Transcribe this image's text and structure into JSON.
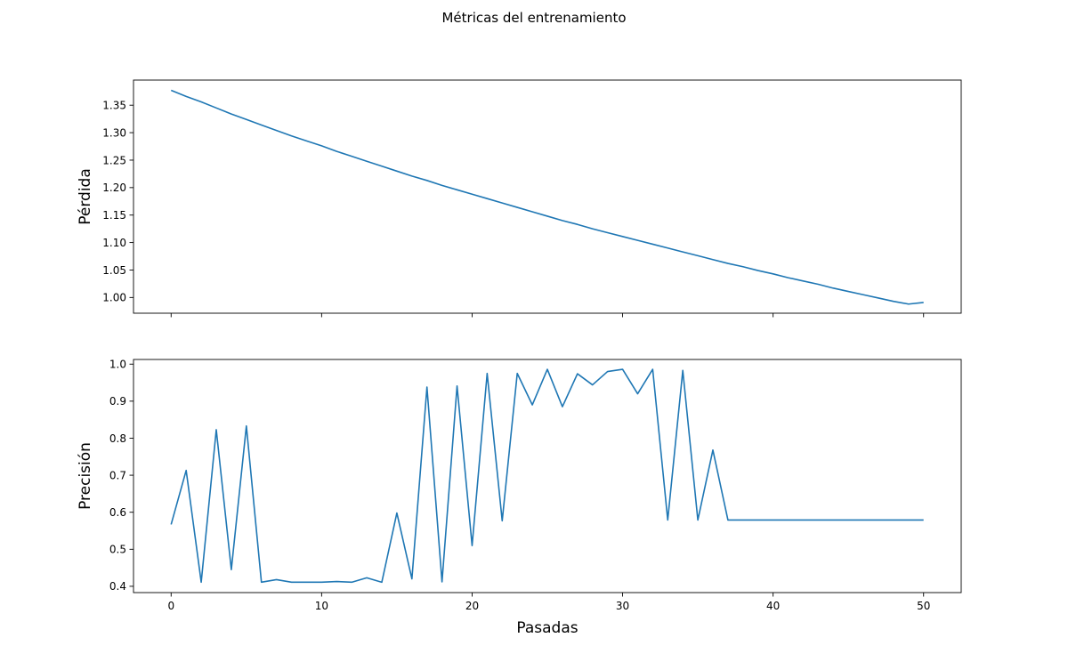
{
  "figure_title": "Métricas del entrenamiento",
  "chart_data": [
    {
      "type": "line",
      "title": "",
      "xlabel": "",
      "ylabel": "Pérdida",
      "xlim": [
        -2.5,
        52.5
      ],
      "ylim": [
        0.9714,
        1.3957
      ],
      "xticks": [
        0,
        10,
        20,
        30,
        40,
        50
      ],
      "show_x_tick_labels": false,
      "yticks": [
        1.0,
        1.05,
        1.1,
        1.15,
        1.2,
        1.25,
        1.3,
        1.35
      ],
      "ytick_labels": [
        "1.00",
        "1.05",
        "1.10",
        "1.15",
        "1.20",
        "1.25",
        "1.30",
        "1.35"
      ],
      "grid": false,
      "line_color": "#1f77b4",
      "series": [
        {
          "x": [
            0,
            1,
            2,
            3,
            4,
            5,
            6,
            7,
            8,
            9,
            10,
            11,
            12,
            13,
            14,
            15,
            16,
            17,
            18,
            19,
            20,
            21,
            22,
            23,
            24,
            25,
            26,
            27,
            28,
            29,
            30,
            31,
            32,
            33,
            34,
            35,
            36,
            37,
            38,
            39,
            40,
            41,
            42,
            43,
            44,
            45,
            46,
            47,
            48,
            49,
            50
          ],
          "values": [
            1.377,
            1.366,
            1.356,
            1.345,
            1.334,
            1.324,
            1.314,
            1.304,
            1.294,
            1.285,
            1.276,
            1.266,
            1.257,
            1.248,
            1.239,
            1.23,
            1.221,
            1.213,
            1.204,
            1.196,
            1.188,
            1.18,
            1.172,
            1.164,
            1.156,
            1.148,
            1.14,
            1.133,
            1.125,
            1.118,
            1.111,
            1.104,
            1.097,
            1.09,
            1.083,
            1.076,
            1.069,
            1.062,
            1.056,
            1.049,
            1.043,
            1.036,
            1.03,
            1.024,
            1.017,
            1.011,
            1.005,
            0.999,
            0.993,
            0.988,
            0.991
          ]
        }
      ]
    },
    {
      "type": "line",
      "title": "",
      "xlabel": "Pasadas",
      "ylabel": "Precisión",
      "xlim": [
        -2.5,
        52.5
      ],
      "ylim": [
        0.383,
        1.0126
      ],
      "xticks": [
        0,
        10,
        20,
        30,
        40,
        50
      ],
      "xtick_labels": [
        "0",
        "10",
        "20",
        "30",
        "40",
        "50"
      ],
      "show_x_tick_labels": true,
      "yticks": [
        0.4,
        0.5,
        0.6,
        0.7,
        0.8,
        0.9,
        1.0
      ],
      "ytick_labels": [
        "0.4",
        "0.5",
        "0.6",
        "0.7",
        "0.8",
        "0.9",
        "1.0"
      ],
      "grid": false,
      "line_color": "#1f77b4",
      "series": [
        {
          "x": [
            0,
            1,
            2,
            3,
            4,
            5,
            6,
            7,
            8,
            9,
            10,
            11,
            12,
            13,
            14,
            15,
            16,
            17,
            18,
            19,
            20,
            21,
            22,
            23,
            24,
            25,
            26,
            27,
            28,
            29,
            30,
            31,
            32,
            33,
            34,
            35,
            36,
            37,
            38,
            39,
            40,
            41,
            42,
            43,
            44,
            45,
            46,
            47,
            48,
            49,
            50
          ],
          "values": [
            0.567,
            0.713,
            0.411,
            0.823,
            0.445,
            0.833,
            0.411,
            0.418,
            0.411,
            0.411,
            0.411,
            0.413,
            0.411,
            0.423,
            0.411,
            0.598,
            0.42,
            0.938,
            0.412,
            0.941,
            0.51,
            0.975,
            0.577,
            0.975,
            0.89,
            0.986,
            0.885,
            0.974,
            0.944,
            0.98,
            0.986,
            0.92,
            0.986,
            0.579,
            0.983,
            0.579,
            0.768,
            0.579,
            0.579,
            0.579,
            0.579,
            0.579,
            0.579,
            0.579,
            0.579,
            0.579,
            0.579,
            0.579,
            0.579,
            0.579,
            0.579
          ]
        }
      ]
    }
  ]
}
